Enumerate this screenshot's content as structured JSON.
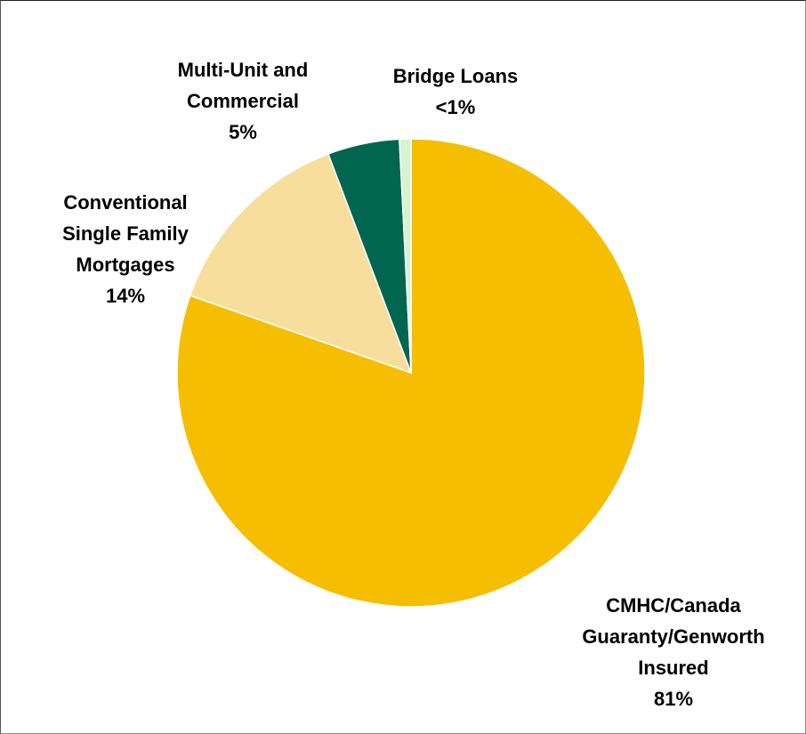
{
  "chart_data": {
    "type": "pie",
    "categories": [
      "CMHC/Canada Guaranty/Genworth Insured",
      "Conventional Single Family Mortgages",
      "Multi-Unit and Commercial",
      "Bridge Loans"
    ],
    "values": [
      81,
      14,
      5,
      0.8
    ],
    "value_labels": [
      "81%",
      "14%",
      "5%",
      "<1%"
    ],
    "colors": [
      "#f5be00",
      "#f7de9c",
      "#00664f",
      "#d5f5d0"
    ]
  }
}
